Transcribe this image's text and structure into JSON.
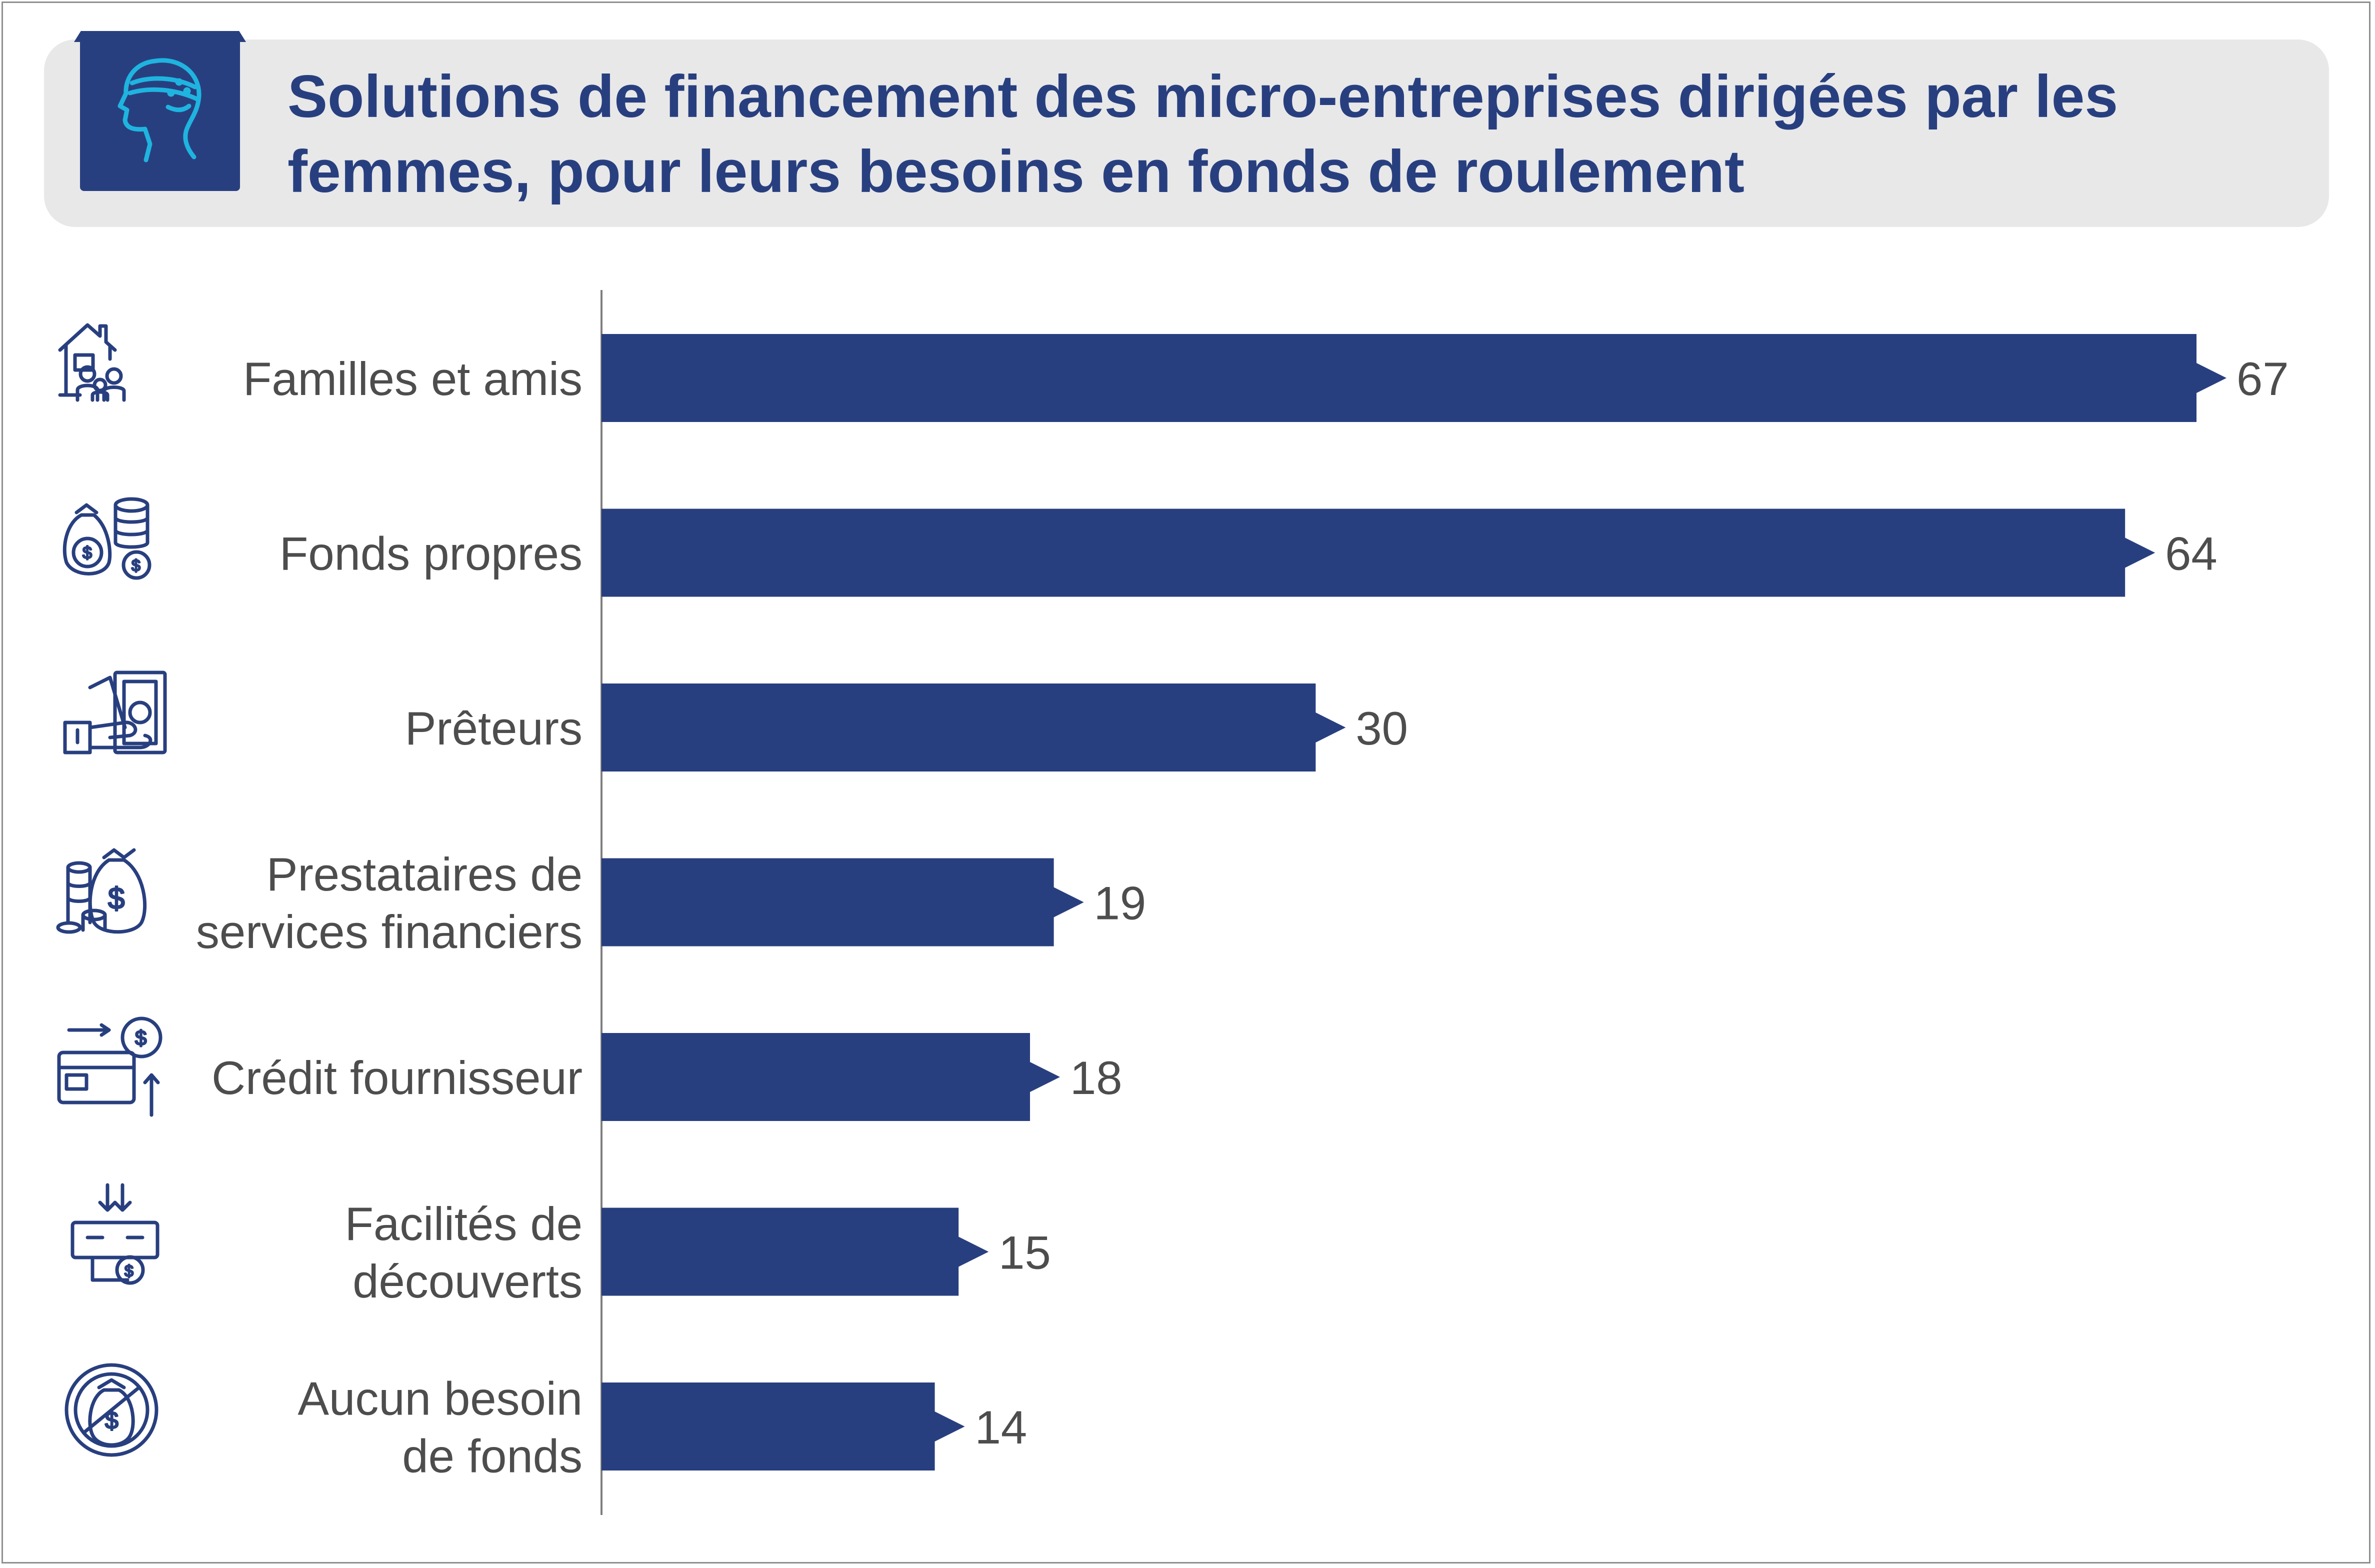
{
  "title": "Solutions de financement des micro-entreprises dirigées par les femmes, pour leurs besoins en fonds de roulement",
  "colors": {
    "bar": "#283f7f",
    "header_bg": "#e8e8e9",
    "text": "#4d4d4d",
    "icon": "#283f7f",
    "badge_icon": "#1fb4e0"
  },
  "badge_icon": "woman-profile-icon",
  "chart_data": {
    "type": "bar",
    "orientation": "horizontal",
    "categories": [
      "Familles et amis",
      "Fonds propres",
      "Prêteurs",
      "Prestataires de services financiers",
      "Crédit fournisseur",
      "Facilités de découverts",
      "Aucun besoin de fonds"
    ],
    "category_lines": [
      [
        "Familles et amis"
      ],
      [
        "Fonds propres"
      ],
      [
        "Prêteurs"
      ],
      [
        "Prestataires de",
        "services financiers"
      ],
      [
        "Crédit fournisseur"
      ],
      [
        "Facilités de",
        "découverts"
      ],
      [
        "Aucun besoin",
        "de fonds"
      ]
    ],
    "values": [
      67,
      64,
      30,
      19,
      18,
      15,
      14
    ],
    "value_labels": [
      "67",
      "64",
      "30",
      "19",
      "18",
      "15",
      "14"
    ],
    "icons": [
      "family-house-icon",
      "money-bag-coins-icon",
      "lender-hand-cash-icon",
      "money-bag-coin-stack-icon",
      "card-transfer-icon",
      "atm-withdrawal-icon",
      "no-money-bag-icon"
    ],
    "xlim": [
      0,
      67
    ],
    "grid": false,
    "legend": "none",
    "xlabel": "",
    "ylabel": ""
  }
}
